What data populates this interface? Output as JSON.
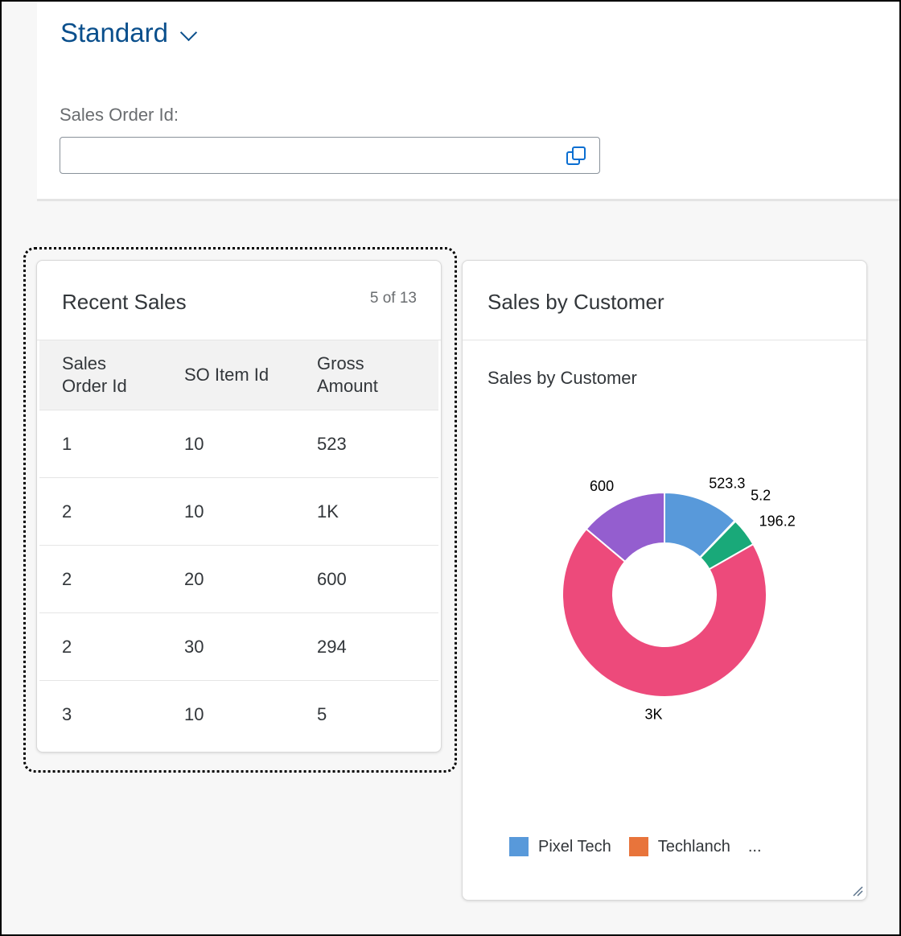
{
  "header": {
    "variant_title": "Standard",
    "filter_label": "Sales Order Id:",
    "filter_value": ""
  },
  "recent_sales": {
    "title": "Recent Sales",
    "count": "5 of 13",
    "columns": [
      "Sales Order Id",
      "SO Item Id",
      "Gross Amount"
    ],
    "column_lines": [
      [
        "Sales",
        "Order Id"
      ],
      [
        "SO Item Id"
      ],
      [
        "Gross",
        "Amount"
      ]
    ],
    "rows": [
      [
        "1",
        "10",
        "523"
      ],
      [
        "2",
        "10",
        "1K"
      ],
      [
        "2",
        "20",
        "600"
      ],
      [
        "2",
        "30",
        "294"
      ],
      [
        "3",
        "10",
        "5"
      ]
    ]
  },
  "sales_by_customer": {
    "card_title": "Sales by Customer",
    "legend": [
      {
        "label": "Pixel Tech",
        "color": "#5899da"
      },
      {
        "label": "Techlanch",
        "color": "#e8743b"
      }
    ],
    "legend_more": "..."
  },
  "chart_data": {
    "type": "pie",
    "donut": true,
    "title": "Sales by Customer",
    "slices": [
      {
        "value": 523.3,
        "label": "523.3",
        "color": "#5899da"
      },
      {
        "value": 5.2,
        "label": "5.2",
        "color": "#e8743b"
      },
      {
        "value": 196.2,
        "label": "196.2",
        "color": "#19a979"
      },
      {
        "value": 3000,
        "label": "3K",
        "color": "#ed4a7b"
      },
      {
        "value": 600,
        "label": "600",
        "color": "#945ecf"
      }
    ]
  },
  "colors": {
    "brand": "#0a4f8c"
  }
}
